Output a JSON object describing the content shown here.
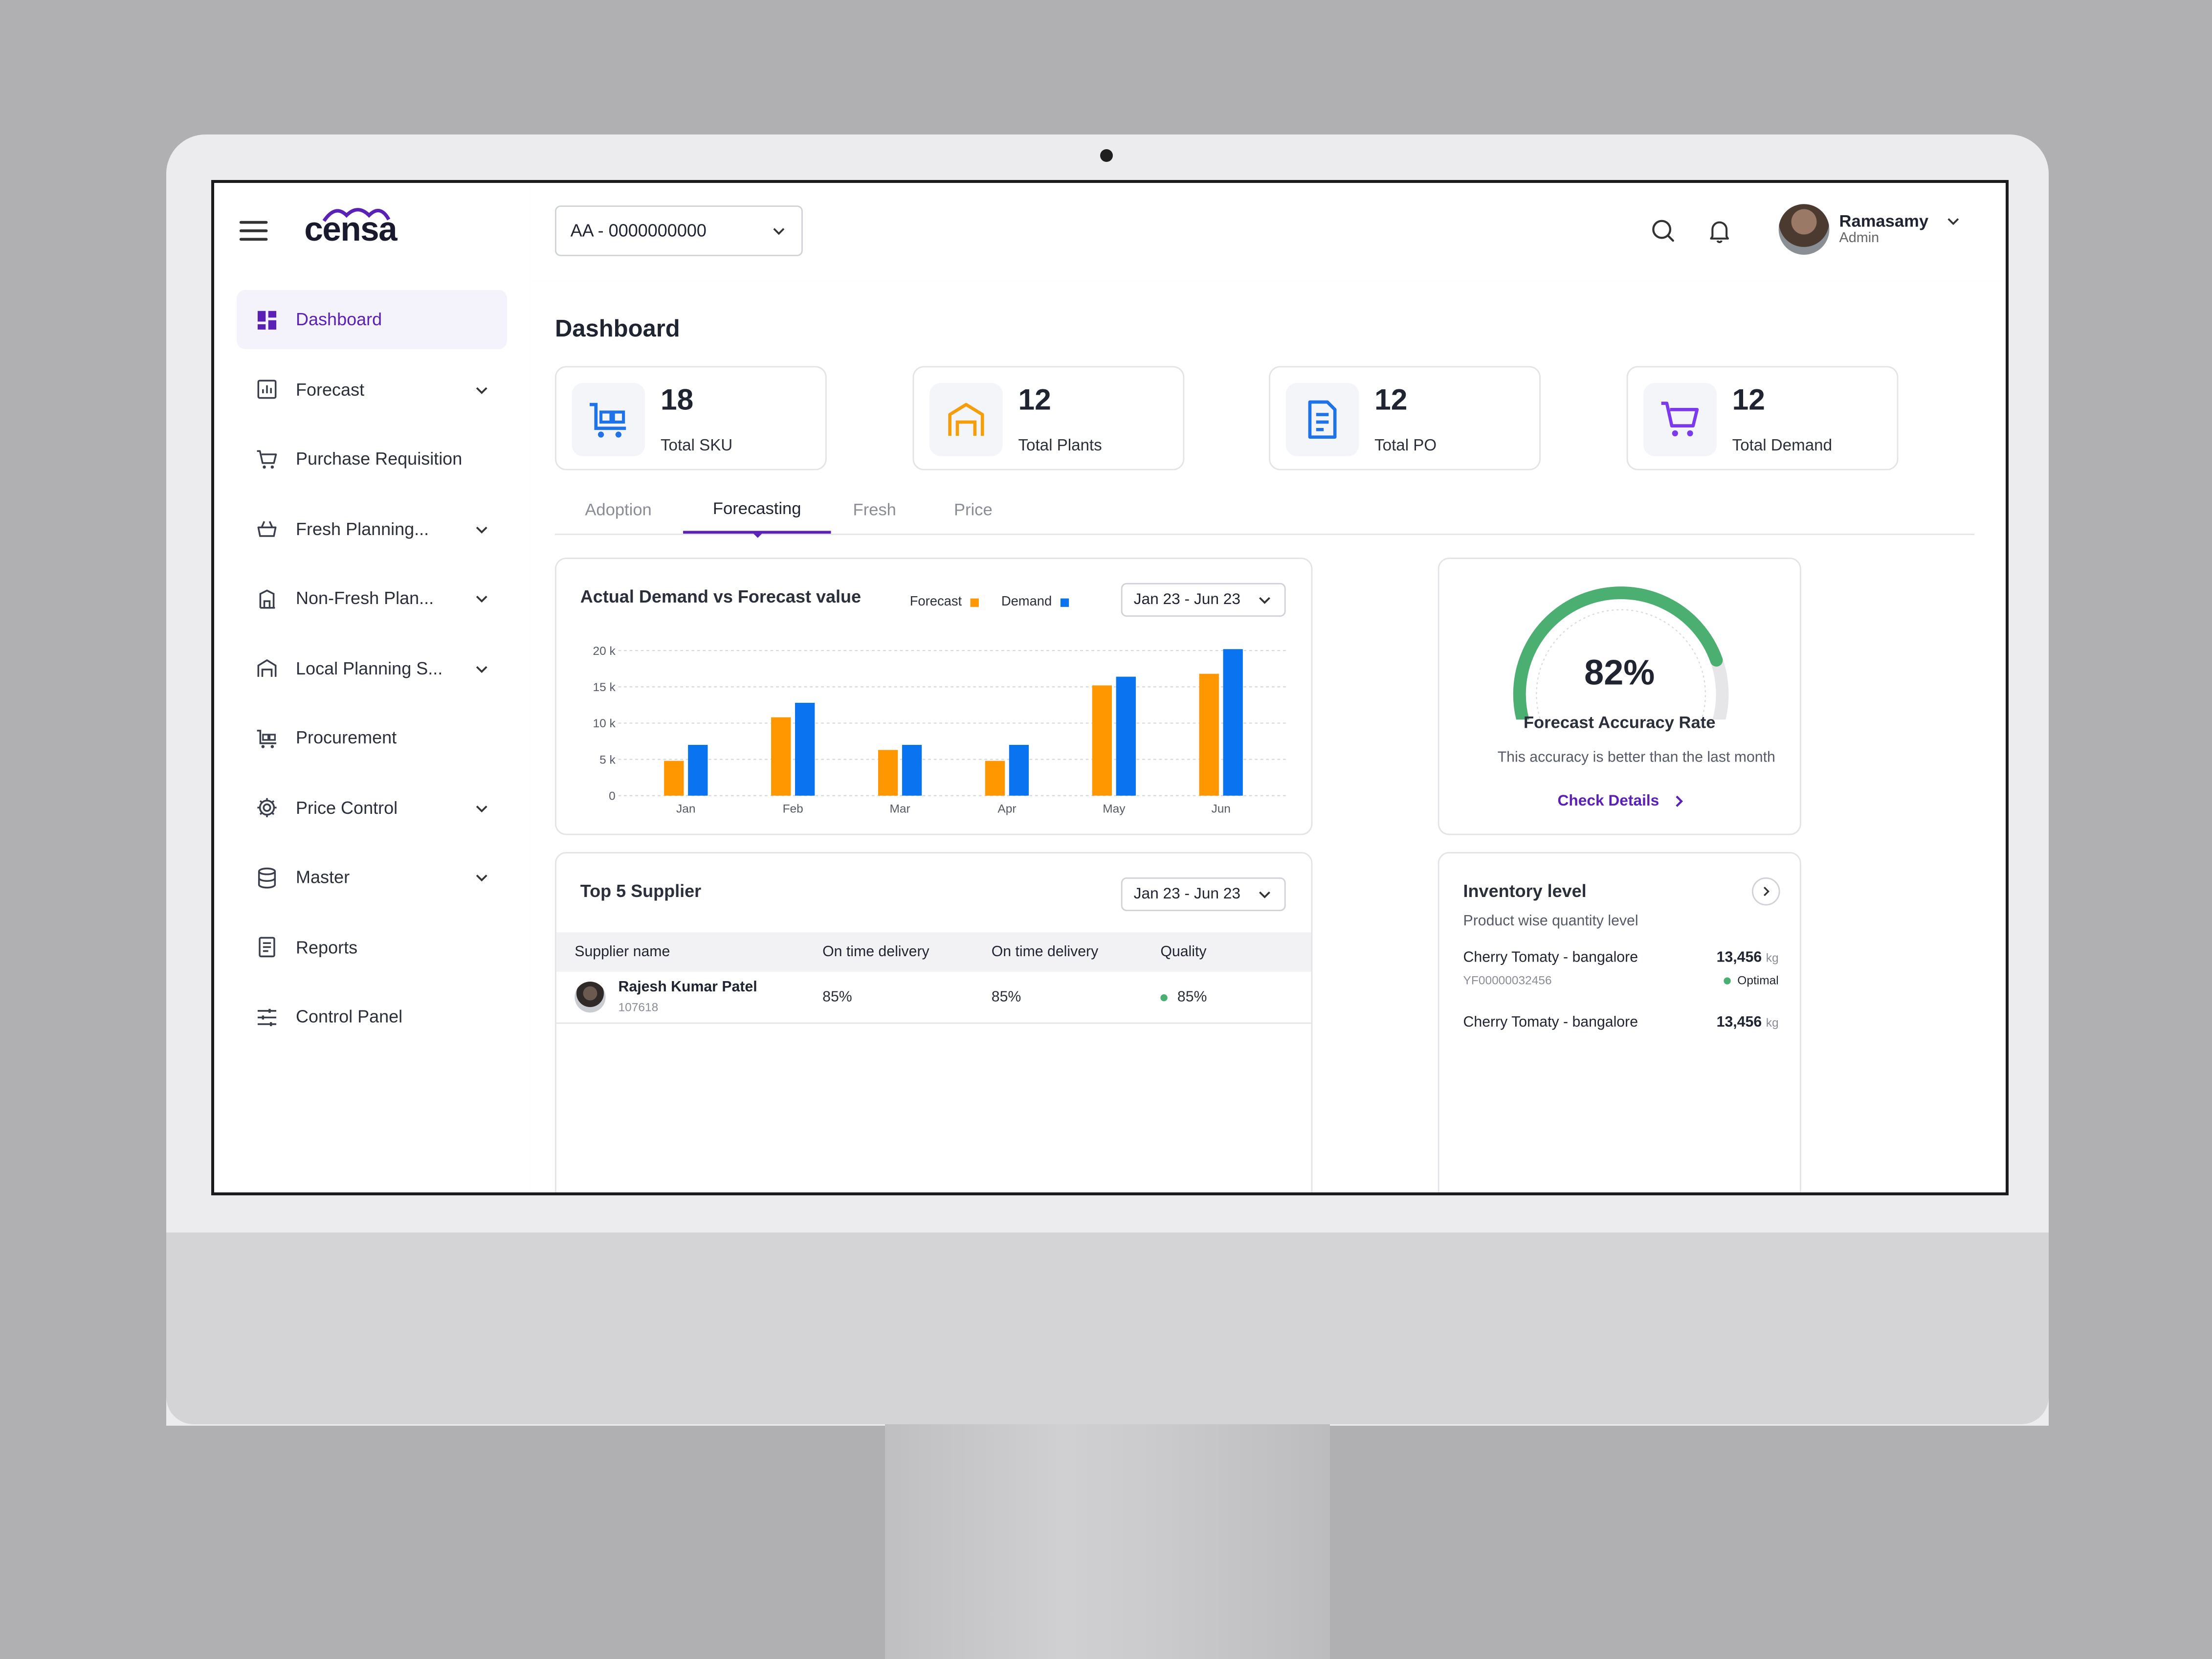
{
  "app": {
    "logo": "censa"
  },
  "topbar": {
    "account_select": "AA - 0000000000",
    "user": {
      "name": "Ramasamy",
      "role": "Admin"
    }
  },
  "sidebar": {
    "items": [
      {
        "label": "Dashboard",
        "icon": "dashboard-icon",
        "active": true,
        "expandable": false
      },
      {
        "label": "Forecast",
        "icon": "chart-icon",
        "active": false,
        "expandable": true
      },
      {
        "label": "Purchase Requisition",
        "icon": "cart-icon",
        "active": false,
        "expandable": false
      },
      {
        "label": "Fresh Planning...",
        "icon": "basket-icon",
        "active": false,
        "expandable": true
      },
      {
        "label": "Non-Fresh Plan...",
        "icon": "box-icon",
        "active": false,
        "expandable": true
      },
      {
        "label": "Local Planning S...",
        "icon": "warehouse-icon",
        "active": false,
        "expandable": true
      },
      {
        "label": "Procurement",
        "icon": "trolley-icon",
        "active": false,
        "expandable": false
      },
      {
        "label": "Price Control",
        "icon": "gear-icon",
        "active": false,
        "expandable": true
      },
      {
        "label": "Master",
        "icon": "database-icon",
        "active": false,
        "expandable": true
      },
      {
        "label": "Reports",
        "icon": "report-icon",
        "active": false,
        "expandable": false
      },
      {
        "label": "Control Panel",
        "icon": "sliders-icon",
        "active": false,
        "expandable": false
      }
    ]
  },
  "main": {
    "title": "Dashboard",
    "stats": [
      {
        "value": "18",
        "label": "Total SKU",
        "icon": "trolley-icon",
        "color": "#1e73e8"
      },
      {
        "value": "12",
        "label": "Total Plants",
        "icon": "warehouse-icon",
        "color": "#f59e0b"
      },
      {
        "value": "12",
        "label": "Total PO",
        "icon": "document-icon",
        "color": "#1e73e8"
      },
      {
        "value": "12",
        "label": "Total Demand",
        "icon": "cart-icon",
        "color": "#7c3aed"
      }
    ],
    "tabs": [
      "Adoption",
      "Forecasting",
      "Fresh",
      "Price"
    ],
    "active_tab": "Forecasting"
  },
  "demand_card": {
    "title": "Actual Demand vs Forecast value",
    "date_range": "Jan 23 - Jun 23"
  },
  "accuracy_card": {
    "percent_text": "82%",
    "percent": 82,
    "label": "Forecast Accuracy Rate",
    "subtext": "This accuracy is better than the last month",
    "link": "Check Details",
    "colors": {
      "fill": "#4caf72",
      "track": "#e6e6e9"
    }
  },
  "supplier_card": {
    "title": "Top 5 Supplier",
    "date_range": "Jan 23 - Jun 23",
    "columns": [
      "Supplier name",
      "On time delivery",
      "On time delivery",
      "Quality"
    ],
    "rows": [
      {
        "name": "Rajesh Kumar Patel",
        "id": "107618",
        "otd1": "85%",
        "otd2": "85%",
        "quality": "85%"
      }
    ]
  },
  "inventory_card": {
    "title": "Inventory level",
    "subtitle": "Product wise quantity level",
    "items": [
      {
        "name": "Cherry Tomaty - bangalore",
        "code": "YF00000032456",
        "qty": "13,456",
        "unit": "kg",
        "status": "Optimal"
      },
      {
        "name": "Cherry Tomaty - bangalore",
        "code": "",
        "qty": "13,456",
        "unit": "kg",
        "status": ""
      }
    ]
  },
  "chart_data": {
    "type": "bar",
    "title": "Actual Demand vs Forecast value",
    "categories": [
      "Jan",
      "Feb",
      "Mar",
      "Apr",
      "May",
      "Jun"
    ],
    "series": [
      {
        "name": "Forecast",
        "color": "#ff9800",
        "values": [
          4800,
          10800,
          6300,
          4800,
          15200,
          16800
        ]
      },
      {
        "name": "Demand",
        "color": "#0a74f0",
        "values": [
          7000,
          12800,
          7000,
          7000,
          16400,
          20200
        ]
      }
    ],
    "y_ticks": [
      "0",
      "5 k",
      "10 k",
      "15 k",
      "20 k"
    ],
    "ylim": [
      0,
      20000
    ],
    "grid": true,
    "legend": "top"
  }
}
